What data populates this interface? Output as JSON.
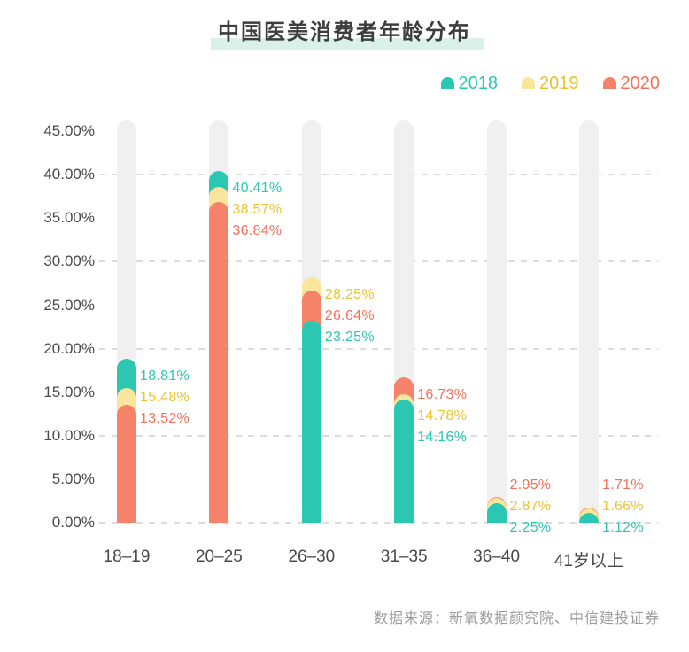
{
  "title": "中国医美消费者年龄分布",
  "source_note": "数据来源：新氧数据颜究院、中信建投证券",
  "colors": {
    "teal": "#2cc7b2",
    "yellow_bar": "#f9e59b",
    "gold_text": "#eec22f",
    "salmon": "#f5836a",
    "salmon_text": "#f5705a",
    "track_gray": "#f0f0f0",
    "title_highlight": "#d9f1e8"
  },
  "legend": [
    {
      "label": "2018"
    },
    {
      "label": "2019"
    },
    {
      "label": "2020"
    }
  ],
  "chart_data": {
    "type": "bar",
    "variant": "overlapped-rounded-columns",
    "title": "中国医美消费者年龄分布",
    "categories": [
      "18–19",
      "20–25",
      "26–30",
      "31–35",
      "36–40",
      "41岁以上"
    ],
    "series": [
      {
        "name": "2018",
        "color": "#2cc7b2",
        "label_color": "#2cc7b2",
        "values": [
          18.81,
          40.41,
          23.25,
          14.16,
          2.25,
          1.12
        ]
      },
      {
        "name": "2019",
        "color": "#f9e59b",
        "label_color": "#eec22f",
        "values": [
          15.48,
          38.57,
          28.25,
          14.78,
          2.87,
          1.66
        ]
      },
      {
        "name": "2020",
        "color": "#f5836a",
        "label_color": "#f5705a",
        "values": [
          13.52,
          36.84,
          26.64,
          16.73,
          2.95,
          1.71
        ]
      }
    ],
    "y_ticks": [
      "45.00%",
      "40.00%",
      "35.00%",
      "30.00%",
      "25.00%",
      "20.00%",
      "15.00%",
      "10.00%",
      "5.00%",
      "0.00%"
    ],
    "ylim": [
      0,
      45
    ],
    "grid_every": 10,
    "grid_style": "dashed",
    "legend_position": "top-right",
    "value_labels_shown": true,
    "value_label_suffix": "%"
  }
}
